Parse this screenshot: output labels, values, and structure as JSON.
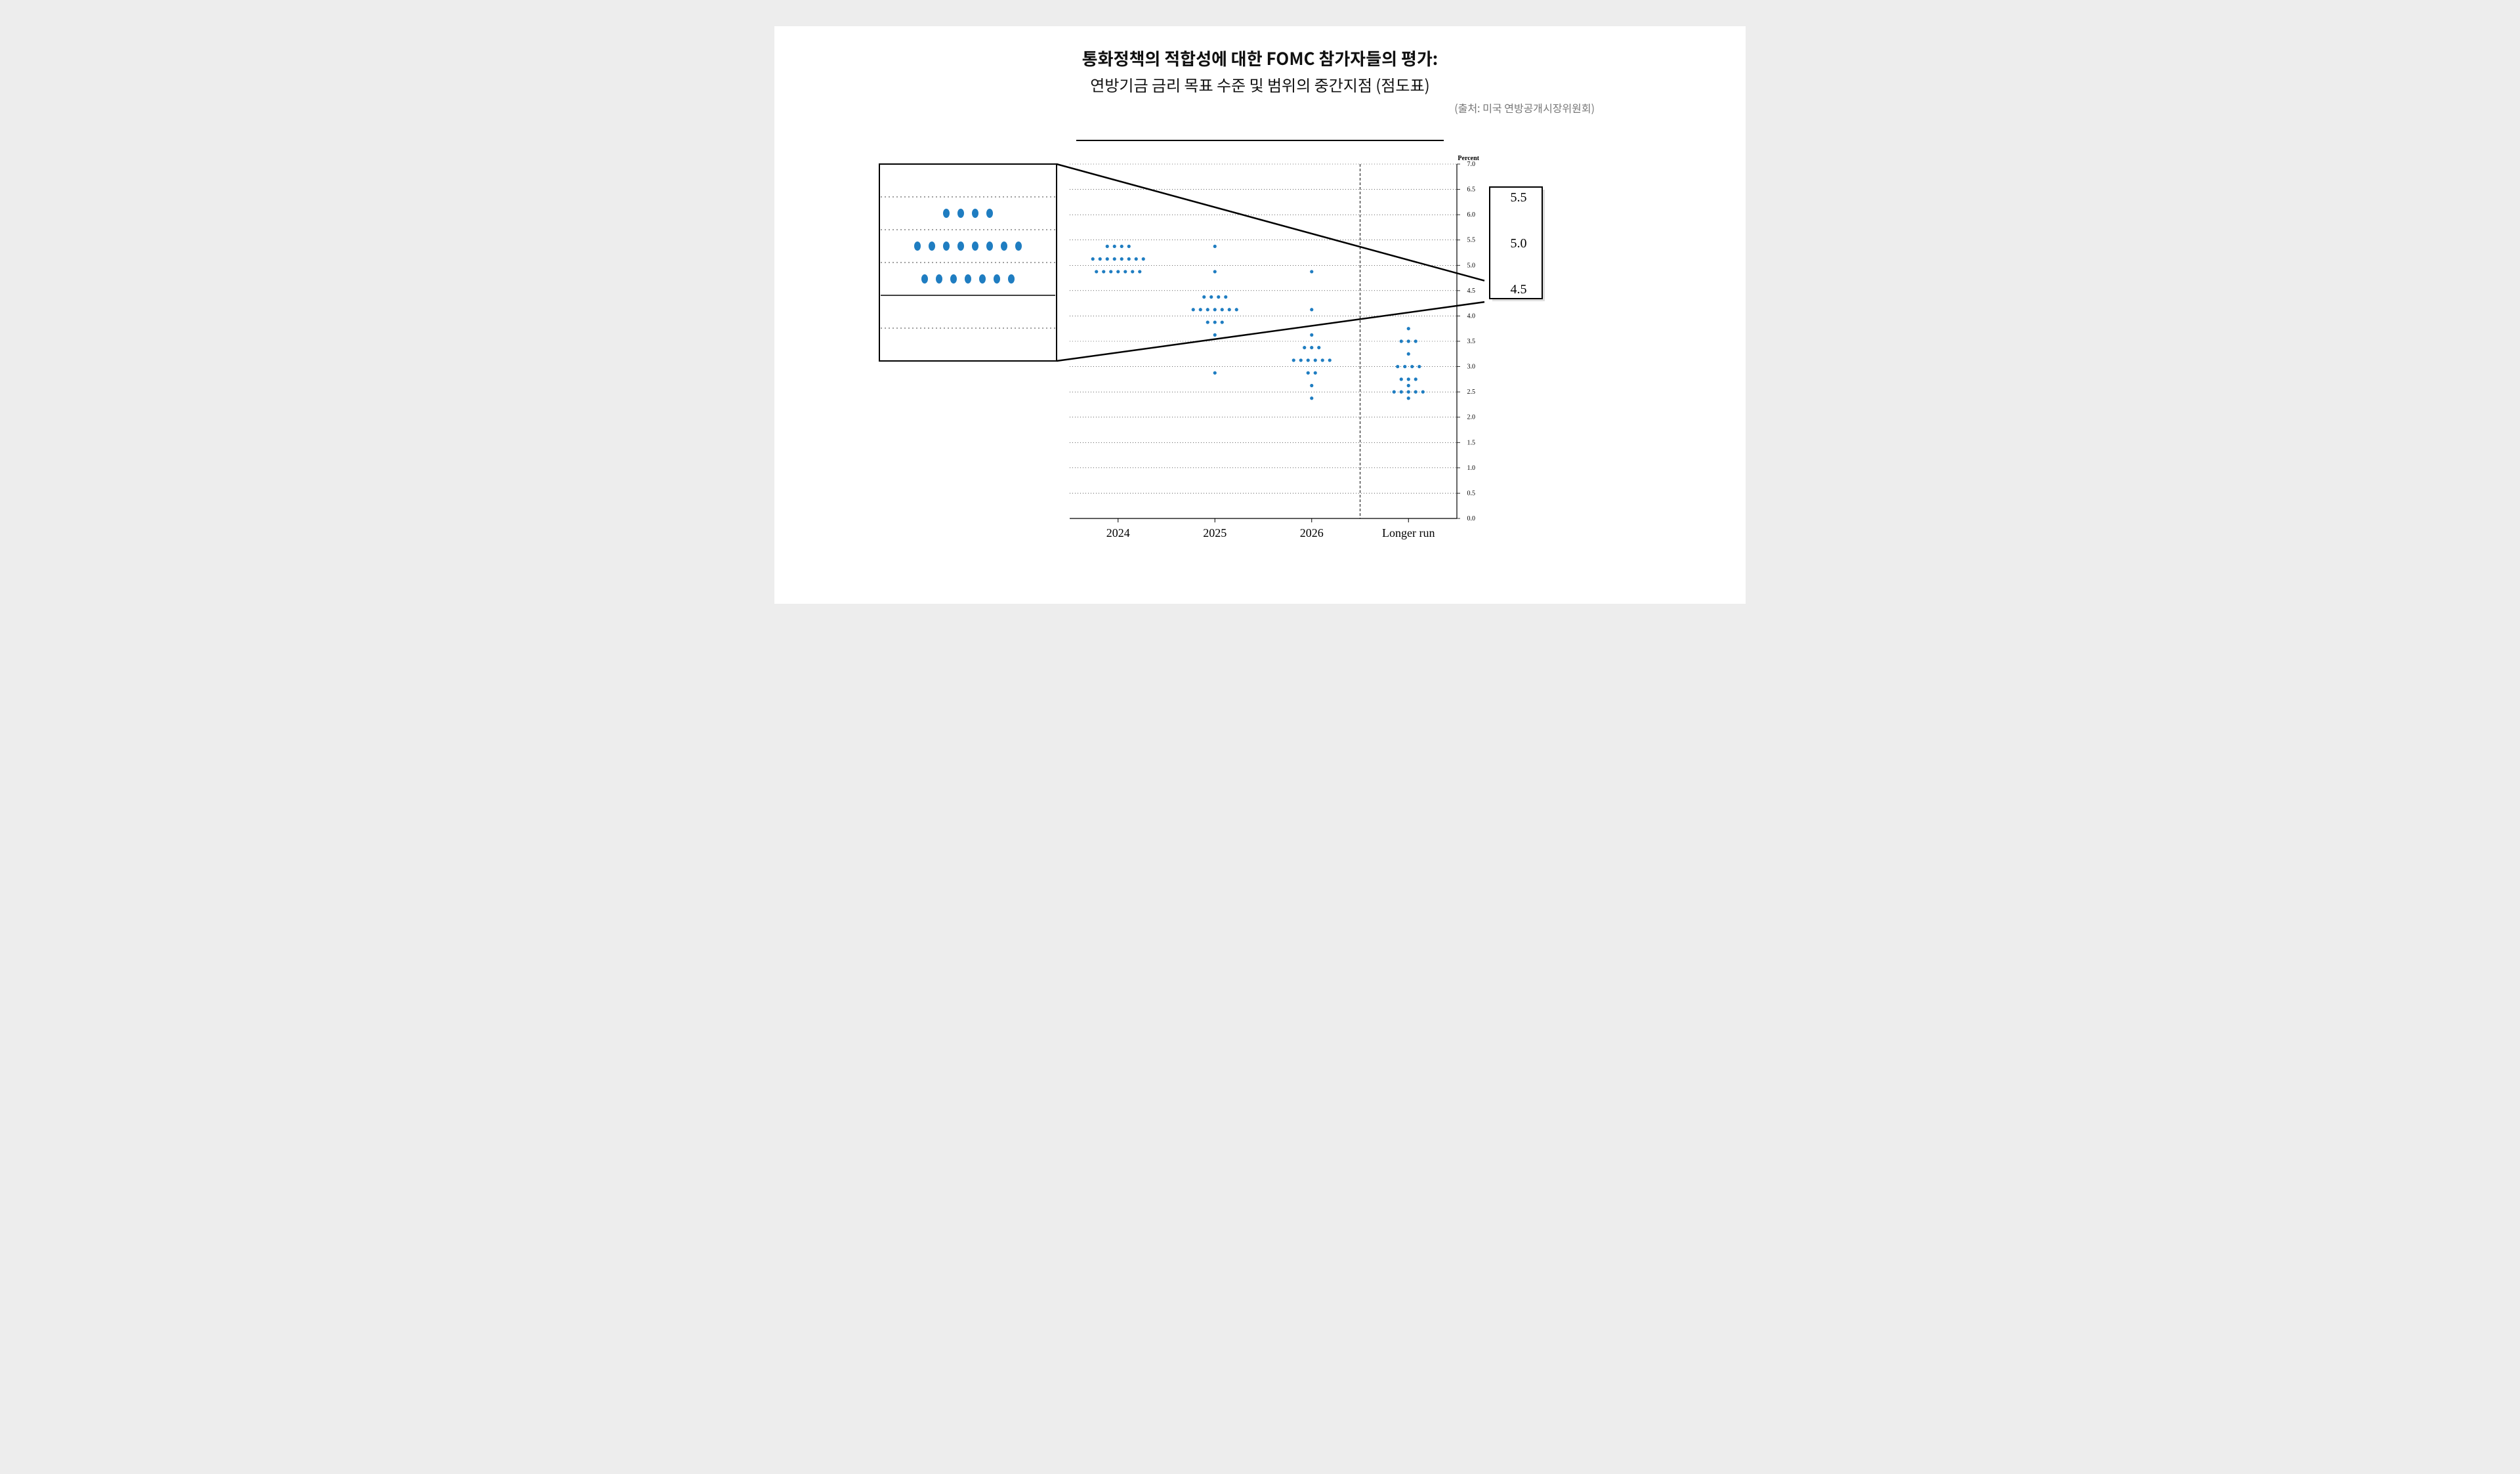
{
  "title": {
    "main": "통화정책의 적합성에 대한 FOMC 참가자들의 평가:",
    "sub": "연방기금 금리 목표 수준 및 범위의 중간지점 (점도표)",
    "source": "(출처: 미국 연방공개시장위원회)"
  },
  "main_chart": {
    "type": "dotplot",
    "background": "#ffffff",
    "axis_color": "#000000",
    "grid_color": "#000000",
    "grid_dotted": true,
    "dot_color": "#1f7dc1",
    "dot_radius": 2.6,
    "dot_spacing": 11,
    "font_family": "Times New Roman, Georgia, serif",
    "y": {
      "label": "Percent",
      "label_fontsize": 10,
      "min": 0.0,
      "max": 7.0,
      "tick_step": 0.5,
      "tick_fontsize": 10
    },
    "x": {
      "categories": [
        "2024",
        "2025",
        "2026",
        "Longer run"
      ],
      "label_fontsize": 18,
      "separator_after_index": 2,
      "separator_style": "dashed"
    },
    "series": [
      {
        "cat": "2024",
        "rate": 5.375,
        "n": 4
      },
      {
        "cat": "2024",
        "rate": 5.125,
        "n": 8
      },
      {
        "cat": "2024",
        "rate": 4.875,
        "n": 7
      },
      {
        "cat": "2025",
        "rate": 5.375,
        "n": 1
      },
      {
        "cat": "2025",
        "rate": 4.875,
        "n": 1
      },
      {
        "cat": "2025",
        "rate": 4.375,
        "n": 4
      },
      {
        "cat": "2025",
        "rate": 4.125,
        "n": 7
      },
      {
        "cat": "2025",
        "rate": 3.875,
        "n": 3
      },
      {
        "cat": "2025",
        "rate": 3.625,
        "n": 1
      },
      {
        "cat": "2025",
        "rate": 2.875,
        "n": 1
      },
      {
        "cat": "2026",
        "rate": 4.875,
        "n": 1
      },
      {
        "cat": "2026",
        "rate": 4.125,
        "n": 1
      },
      {
        "cat": "2026",
        "rate": 3.625,
        "n": 1
      },
      {
        "cat": "2026",
        "rate": 3.375,
        "n": 3
      },
      {
        "cat": "2026",
        "rate": 3.125,
        "n": 6
      },
      {
        "cat": "2026",
        "rate": 2.875,
        "n": 2
      },
      {
        "cat": "2026",
        "rate": 2.625,
        "n": 1
      },
      {
        "cat": "2026",
        "rate": 2.375,
        "n": 1
      },
      {
        "cat": "Longer run",
        "rate": 3.75,
        "n": 1
      },
      {
        "cat": "Longer run",
        "rate": 3.5,
        "n": 3
      },
      {
        "cat": "Longer run",
        "rate": 3.25,
        "n": 1
      },
      {
        "cat": "Longer run",
        "rate": 3.0,
        "n": 4
      },
      {
        "cat": "Longer run",
        "rate": 2.75,
        "n": 3
      },
      {
        "cat": "Longer run",
        "rate": 2.625,
        "n": 1
      },
      {
        "cat": "Longer run",
        "rate": 2.5,
        "n": 5
      },
      {
        "cat": "Longer run",
        "rate": 2.375,
        "n": 1
      }
    ]
  },
  "zoom_left": {
    "type": "dotplot-zoom",
    "background": "#ffffff",
    "border_color": "#000000",
    "border_width": 2,
    "grid_color": "#000000",
    "dot_color": "#1f7dc1",
    "dot_rx": 5,
    "dot_ry": 7,
    "dot_spacing": 22,
    "y_min": 4.25,
    "y_max": 5.75,
    "y_tick_step": 0.25,
    "solid_line_at": 4.75,
    "rows": [
      {
        "rate": 5.375,
        "n": 4
      },
      {
        "rate": 5.125,
        "n": 8
      },
      {
        "rate": 4.875,
        "n": 7
      }
    ]
  },
  "zoom_right": {
    "type": "scale-zoom",
    "background": "#ffffff",
    "border_color": "#000000",
    "border_width": 2,
    "labels": [
      "5.5",
      "5.0",
      "4.5"
    ],
    "label_fontsize": 20,
    "shadow_color": "#bcbcbc"
  },
  "connector_lines": {
    "color": "#000000",
    "width": 2.5
  }
}
